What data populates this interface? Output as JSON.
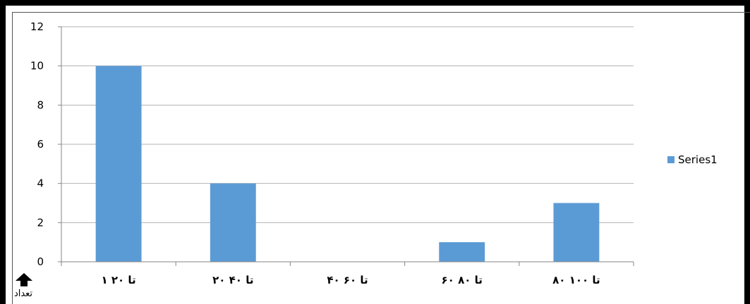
{
  "chart_data": {
    "type": "bar",
    "categories": [
      "۱ تا ۲۰",
      "۲۰ تا ۴۰",
      "۴۰ تا ۶۰",
      "۶۰ تا ۸۰",
      "۸۰ تا ۱۰۰"
    ],
    "series": [
      {
        "name": "Series1",
        "values": [
          10,
          4,
          0,
          1,
          3
        ],
        "color": "#5b9bd5"
      }
    ],
    "title": "",
    "xlabel": "",
    "ylabel": "تعداد",
    "ylim": [
      0,
      12
    ],
    "yticks": [
      0,
      2,
      4,
      6,
      8,
      10,
      12
    ],
    "grid": true,
    "legend_position": "right"
  }
}
